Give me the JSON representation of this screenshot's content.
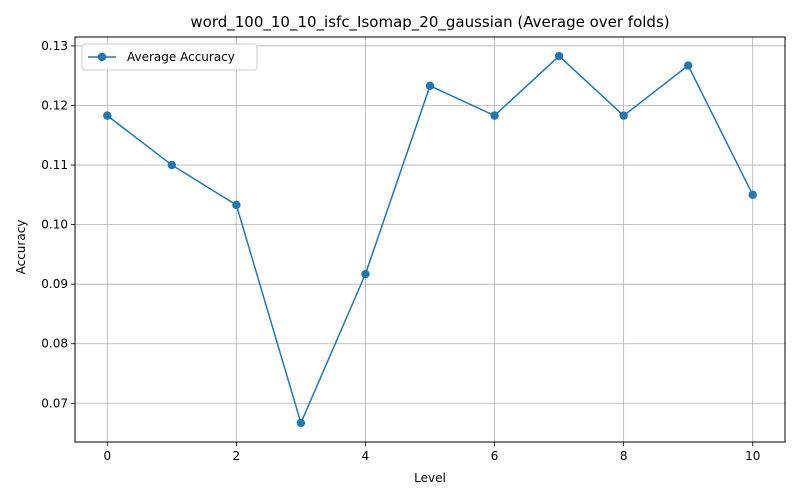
{
  "chart_data": {
    "type": "line",
    "title": "word_100_10_10_isfc_Isomap_20_gaussian (Average over folds)",
    "xlabel": "Level",
    "ylabel": "Accuracy",
    "xlim": [
      -0.5,
      10.5
    ],
    "ylim": [
      0.0635,
      0.1315
    ],
    "xticks": [
      0,
      2,
      4,
      6,
      8,
      10
    ],
    "xtick_labels": [
      "0",
      "2",
      "4",
      "6",
      "8",
      "10"
    ],
    "yticks": [
      0.07,
      0.08,
      0.09,
      0.1,
      0.11,
      0.12,
      0.13
    ],
    "ytick_labels": [
      "0.07",
      "0.08",
      "0.09",
      "0.10",
      "0.11",
      "0.12",
      "0.13"
    ],
    "grid": true,
    "legend": "upper-left",
    "series": [
      {
        "name": "Average Accuracy",
        "color": "#1f77b4",
        "marker": "circle",
        "x": [
          0,
          1,
          2,
          3,
          4,
          5,
          6,
          7,
          8,
          9,
          10
        ],
        "y": [
          0.1183,
          0.11,
          0.1033,
          0.0667,
          0.0917,
          0.1233,
          0.1183,
          0.1283,
          0.1183,
          0.1267,
          0.105
        ]
      }
    ]
  }
}
